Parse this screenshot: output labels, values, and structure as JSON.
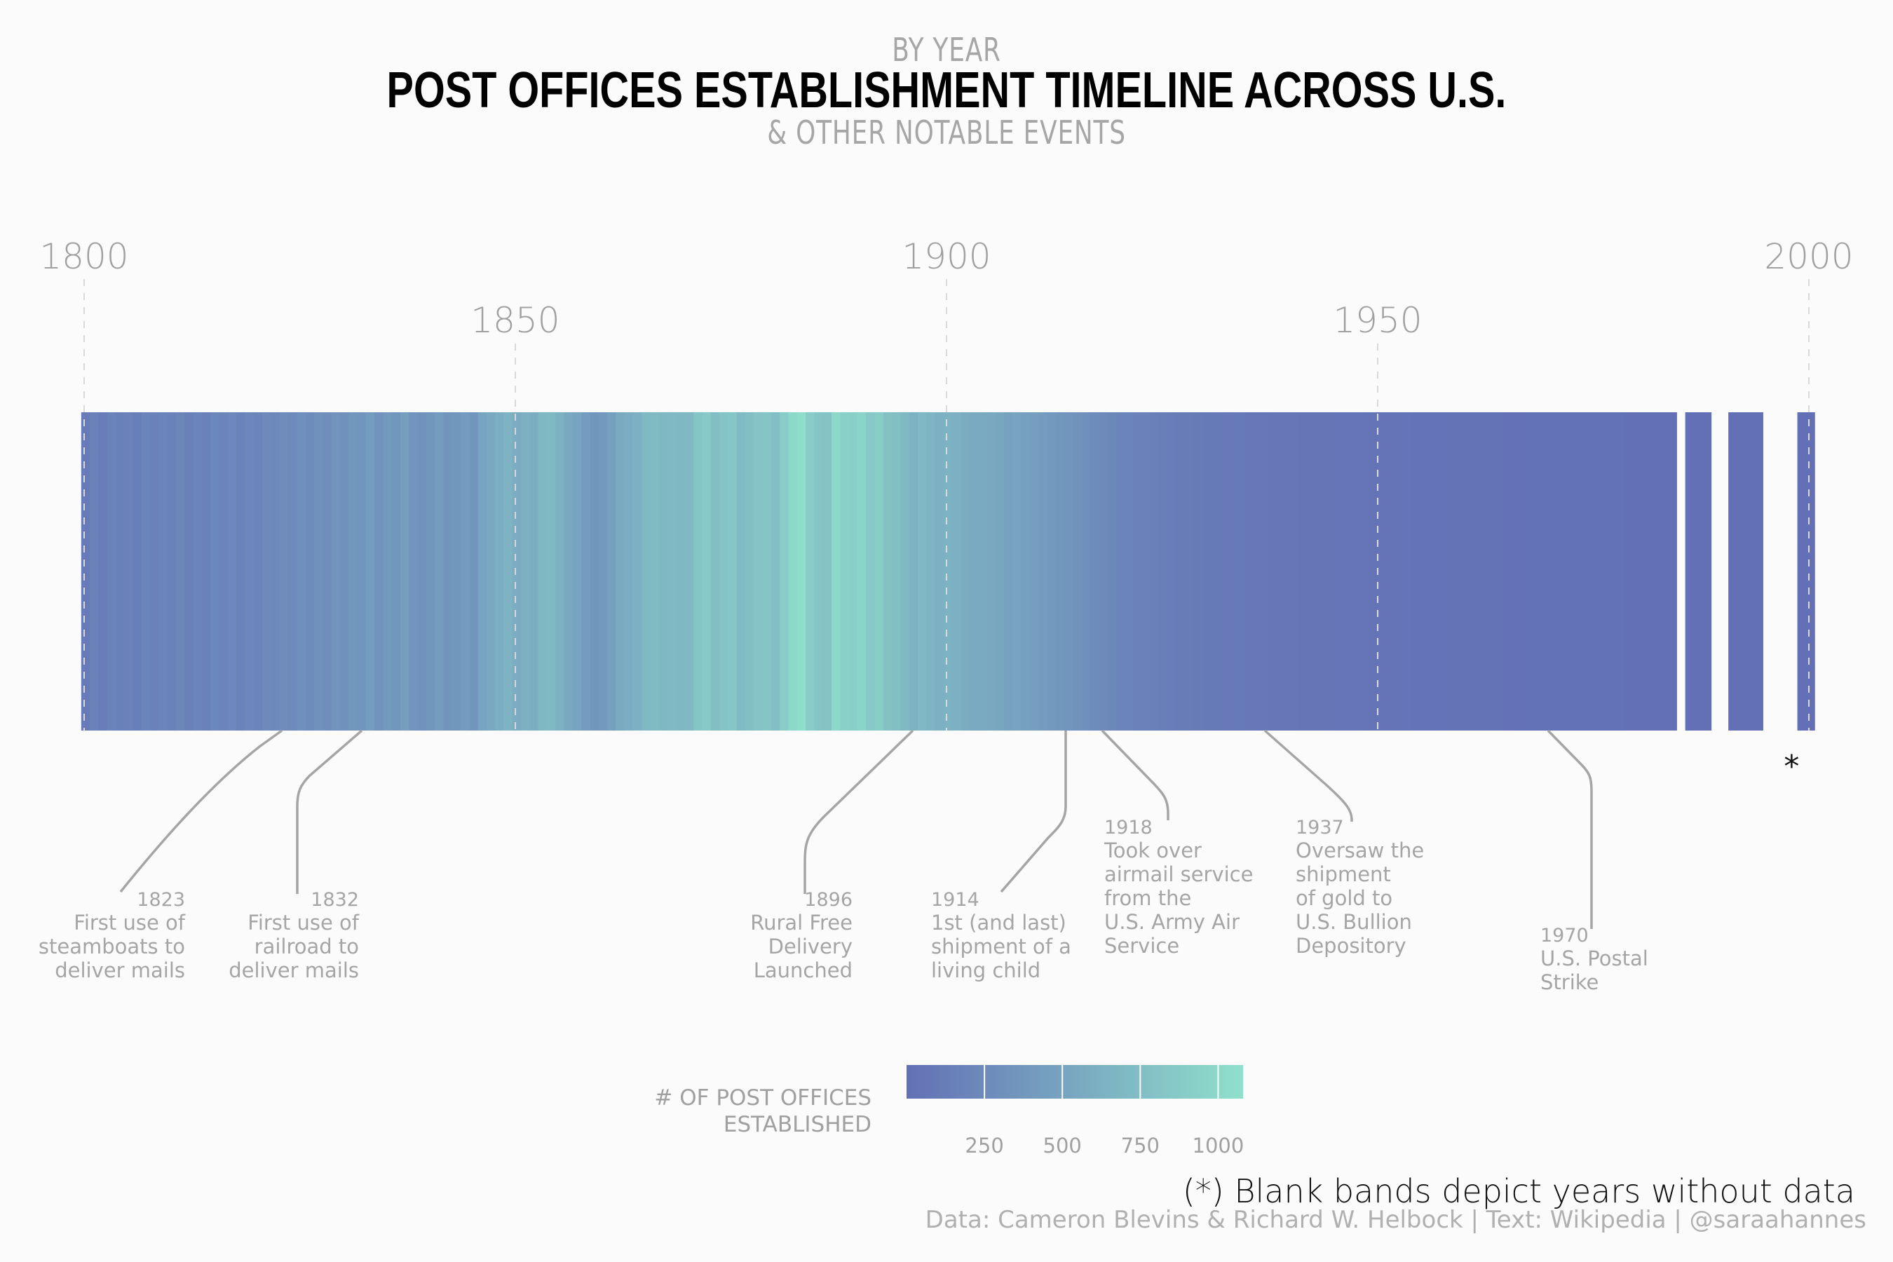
{
  "header": {
    "top": "BY YEAR",
    "title": "POST OFFICES ESTABLISHMENT TIMELINE ACROSS U.S.",
    "bottom": "& OTHER NOTABLE EVENTS"
  },
  "footer": {
    "note": "(*) Blank bands depict years without data",
    "credit": "Data: Cameron Blevins & Richard W. Helbock | Text: Wikipedia | @saraahannes"
  },
  "colors": {
    "low": "#6370b6",
    "high": "#8fe0cb",
    "annotation": "#a5a5a5",
    "grid": "#d9d9d9",
    "tick_text": "#a0a0a0"
  },
  "chart_data": {
    "type": "heatmap",
    "title": "POST OFFICES ESTABLISHMENT TIMELINE ACROSS U.S.",
    "xlim": [
      1800,
      2000
    ],
    "x_ticks_upper": [
      1800,
      1900,
      2000
    ],
    "x_ticks_lower": [
      1850,
      1950
    ],
    "missing_marker": "*",
    "legend": {
      "title_lines": [
        "# OF POST OFFICES",
        "ESTABLISHED"
      ],
      "ticks": [
        250,
        500,
        750,
        1000
      ],
      "range": [
        0,
        1080
      ]
    },
    "years": [
      1800,
      1801,
      1802,
      1803,
      1804,
      1805,
      1806,
      1807,
      1808,
      1809,
      1810,
      1811,
      1812,
      1813,
      1814,
      1815,
      1816,
      1817,
      1818,
      1819,
      1820,
      1821,
      1822,
      1823,
      1824,
      1825,
      1826,
      1827,
      1828,
      1829,
      1830,
      1831,
      1832,
      1833,
      1834,
      1835,
      1836,
      1837,
      1838,
      1839,
      1840,
      1841,
      1842,
      1843,
      1844,
      1845,
      1846,
      1847,
      1848,
      1849,
      1850,
      1851,
      1852,
      1853,
      1854,
      1855,
      1856,
      1857,
      1858,
      1859,
      1860,
      1861,
      1862,
      1863,
      1864,
      1865,
      1866,
      1867,
      1868,
      1869,
      1870,
      1871,
      1872,
      1873,
      1874,
      1875,
      1876,
      1877,
      1878,
      1879,
      1880,
      1881,
      1882,
      1883,
      1884,
      1885,
      1886,
      1887,
      1888,
      1889,
      1890,
      1891,
      1892,
      1893,
      1894,
      1895,
      1896,
      1897,
      1898,
      1899,
      1900,
      1901,
      1902,
      1903,
      1904,
      1905,
      1906,
      1907,
      1908,
      1909,
      1910,
      1911,
      1912,
      1913,
      1914,
      1915,
      1916,
      1917,
      1918,
      1919,
      1920,
      1921,
      1922,
      1923,
      1924,
      1925,
      1926,
      1927,
      1928,
      1929,
      1930,
      1931,
      1932,
      1933,
      1934,
      1935,
      1936,
      1937,
      1938,
      1939,
      1940,
      1941,
      1942,
      1943,
      1944,
      1945,
      1946,
      1947,
      1948,
      1949,
      1950,
      1951,
      1952,
      1953,
      1954,
      1955,
      1956,
      1957,
      1958,
      1959,
      1960,
      1961,
      1962,
      1963,
      1964,
      1965,
      1966,
      1967,
      1968,
      1969,
      1970,
      1971,
      1972,
      1973,
      1974,
      1975,
      1976,
      1977,
      1978,
      1979,
      1980,
      1981,
      1982,
      1983,
      1984,
      1985,
      1986,
      1987,
      1988,
      1989,
      1990,
      1991,
      1992,
      1993,
      1994,
      1995,
      1996,
      1997,
      1998,
      1999,
      2000
    ],
    "values": [
      110,
      160,
      130,
      180,
      150,
      170,
      140,
      190,
      160,
      200,
      170,
      210,
      150,
      190,
      160,
      220,
      200,
      240,
      180,
      230,
      200,
      250,
      240,
      280,
      250,
      300,
      270,
      320,
      290,
      340,
      320,
      380,
      360,
      420,
      340,
      400,
      380,
      440,
      360,
      330,
      380,
      420,
      360,
      380,
      420,
      360,
      500,
      550,
      600,
      650,
      580,
      620,
      600,
      680,
      700,
      640,
      540,
      500,
      420,
      380,
      400,
      460,
      560,
      600,
      620,
      700,
      720,
      680,
      700,
      680,
      700,
      820,
      860,
      760,
      800,
      840,
      720,
      760,
      800,
      820,
      760,
      900,
      1000,
      1060,
      900,
      820,
      800,
      1000,
      940,
      920,
      960,
      860,
      900,
      780,
      760,
      700,
      640,
      700,
      660,
      620,
      640,
      620,
      580,
      560,
      560,
      540,
      520,
      480,
      500,
      460,
      440,
      420,
      400,
      380,
      360,
      330,
      300,
      270,
      250,
      230,
      200,
      190,
      170,
      160,
      150,
      140,
      130,
      120,
      115,
      110,
      100,
      95,
      90,
      90,
      85,
      80,
      80,
      75,
      70,
      70,
      65,
      60,
      60,
      55,
      55,
      50,
      50,
      45,
      45,
      40,
      40,
      38,
      36,
      34,
      32,
      30,
      28,
      26,
      24,
      22,
      20,
      20,
      18,
      16,
      15,
      14,
      13,
      12,
      11,
      10,
      10,
      9,
      8,
      8,
      7,
      6,
      6,
      5,
      5,
      4,
      4,
      3,
      3,
      3,
      2,
      null,
      2,
      2,
      2,
      null,
      null,
      2,
      2,
      2,
      2,
      null,
      null,
      null,
      null,
      2,
      2
    ],
    "annotations": [
      {
        "year": 1823,
        "label_year": "1823",
        "lines": [
          "First use of",
          "steamboats to",
          "deliver mails"
        ],
        "align": "right"
      },
      {
        "year": 1832,
        "label_year": "1832",
        "lines": [
          "First use of",
          "railroad to",
          "deliver mails"
        ],
        "align": "right"
      },
      {
        "year": 1896,
        "label_year": "1896",
        "lines": [
          "Rural Free",
          "Delivery",
          "Launched"
        ],
        "align": "right"
      },
      {
        "year": 1914,
        "label_year": "1914",
        "lines": [
          "1st (and last)",
          "shipment of a",
          "living child"
        ],
        "align": "left"
      },
      {
        "year": 1918,
        "label_year": "1918",
        "lines": [
          "Took over",
          "airmail service",
          "from the",
          "U.S. Army Air",
          "Service"
        ],
        "align": "left"
      },
      {
        "year": 1937,
        "label_year": "1937",
        "lines": [
          "Oversaw the",
          "shipment",
          "of gold to",
          "U.S. Bullion",
          "Depository"
        ],
        "align": "left"
      },
      {
        "year": 1970,
        "label_year": "1970",
        "lines": [
          "U.S. Postal",
          "Strike"
        ],
        "align": "left"
      }
    ]
  }
}
